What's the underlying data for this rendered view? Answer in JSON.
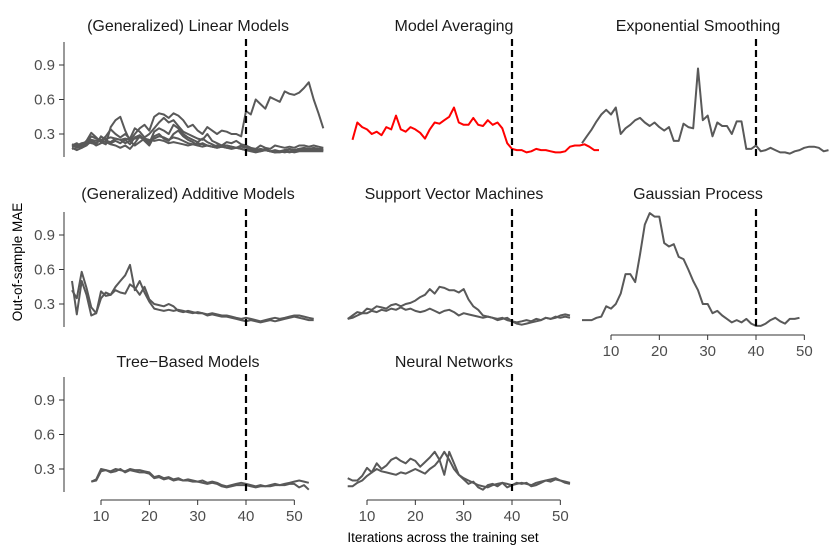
{
  "chart_data": {
    "type": "line",
    "facet_layout": "3x3 grid, 8 panels",
    "ylabel": "Out-of-sample MAE",
    "xlabel": "Iterations across the training set",
    "x_range": [
      4,
      52
    ],
    "y_range": [
      0.1,
      1.1
    ],
    "x_ticks": [
      "10",
      "20",
      "30",
      "40",
      "50"
    ],
    "y_ticks": [
      "0.3",
      "0.6",
      "0.9"
    ],
    "reference_line": {
      "x": 40,
      "style": "dashed",
      "color": "#000000"
    },
    "colors": {
      "default": "#595959",
      "highlight": "#ff0000"
    },
    "panels": [
      {
        "title": "(Generalized) Linear Models",
        "color": "#595959",
        "series": [
          {
            "x_start": 4,
            "values": [
              0.2,
              0.22,
              0.19,
              0.24,
              0.31,
              0.27,
              0.23,
              0.21,
              0.36,
              0.42,
              0.45,
              0.33,
              0.24,
              0.3,
              0.35,
              0.38,
              0.33,
              0.45,
              0.48,
              0.47,
              0.44,
              0.48,
              0.46,
              0.42,
              0.36,
              0.38,
              0.33,
              0.3,
              0.36,
              0.33,
              0.3,
              0.33,
              0.32,
              0.3,
              0.3,
              0.28,
              0.5,
              0.47,
              0.6,
              0.56,
              0.52,
              0.62,
              0.6,
              0.58,
              0.67,
              0.65,
              0.64,
              0.66,
              0.7,
              0.75,
              0.6,
              0.48,
              0.35
            ]
          },
          {
            "x_start": 4,
            "values": [
              0.19,
              0.2,
              0.21,
              0.22,
              0.28,
              0.26,
              0.24,
              0.28,
              0.34,
              0.3,
              0.27,
              0.3,
              0.26,
              0.35,
              0.32,
              0.27,
              0.3,
              0.35,
              0.4,
              0.44,
              0.4,
              0.42,
              0.37,
              0.32,
              0.3,
              0.28,
              0.26,
              0.25,
              0.3,
              0.24,
              0.22,
              0.2,
              0.23,
              0.22,
              0.24,
              0.21,
              0.2,
              0.18,
              0.17,
              0.2,
              0.18,
              0.17,
              0.2,
              0.19,
              0.18,
              0.19,
              0.18,
              0.2,
              0.2,
              0.19,
              0.2,
              0.19,
              0.18
            ]
          },
          {
            "x_start": 4,
            "values": [
              0.17,
              0.18,
              0.2,
              0.24,
              0.22,
              0.21,
              0.28,
              0.25,
              0.22,
              0.24,
              0.22,
              0.25,
              0.21,
              0.27,
              0.29,
              0.25,
              0.22,
              0.32,
              0.35,
              0.33,
              0.3,
              0.38,
              0.35,
              0.3,
              0.27,
              0.25,
              0.23,
              0.26,
              0.23,
              0.21,
              0.19,
              0.2,
              0.2,
              0.19,
              0.18,
              0.2,
              0.19,
              0.16,
              0.15,
              0.16,
              0.17,
              0.15,
              0.14,
              0.15,
              0.16,
              0.15,
              0.16,
              0.17,
              0.18,
              0.17,
              0.17,
              0.16,
              0.16
            ]
          },
          {
            "x_start": 4,
            "values": [
              0.18,
              0.16,
              0.18,
              0.2,
              0.24,
              0.22,
              0.25,
              0.23,
              0.21,
              0.2,
              0.18,
              0.2,
              0.17,
              0.22,
              0.28,
              0.24,
              0.2,
              0.28,
              0.3,
              0.26,
              0.24,
              0.3,
              0.33,
              0.28,
              0.25,
              0.23,
              0.2,
              0.22,
              0.2,
              0.19,
              0.18,
              0.19,
              0.18,
              0.19,
              0.18,
              0.17,
              0.16,
              0.15,
              0.14,
              0.15,
              0.16,
              0.15,
              0.14,
              0.14,
              0.15,
              0.14,
              0.15,
              0.16,
              0.17,
              0.16,
              0.16,
              0.16,
              0.16
            ]
          },
          {
            "x_start": 4,
            "values": [
              0.2,
              0.19,
              0.18,
              0.21,
              0.23,
              0.2,
              0.22,
              0.24,
              0.23,
              0.26,
              0.25,
              0.22,
              0.24,
              0.2,
              0.23,
              0.26,
              0.24,
              0.26,
              0.28,
              0.27,
              0.25,
              0.27,
              0.26,
              0.24,
              0.22,
              0.21,
              0.22,
              0.21,
              0.2,
              0.19,
              0.2,
              0.19,
              0.2,
              0.19,
              0.18,
              0.19,
              0.18,
              0.17,
              0.16,
              0.17,
              0.16,
              0.15,
              0.16,
              0.15,
              0.16,
              0.17,
              0.16,
              0.17,
              0.16,
              0.17,
              0.18,
              0.17,
              0.17
            ]
          },
          {
            "x_start": 4,
            "values": [
              0.21,
              0.2,
              0.22,
              0.23,
              0.25,
              0.24,
              0.25,
              0.26,
              0.27,
              0.26,
              0.25,
              0.26,
              0.25,
              0.26,
              0.27,
              0.26,
              0.25,
              0.24,
              0.25,
              0.24,
              0.22,
              0.23,
              0.22,
              0.21,
              0.2,
              0.21,
              0.2,
              0.19,
              0.2,
              0.19,
              0.18,
              0.19,
              0.18,
              0.17,
              0.18,
              0.17,
              0.16,
              0.17,
              0.16,
              0.15,
              0.16,
              0.15,
              0.14,
              0.15,
              0.14,
              0.15,
              0.14,
              0.15,
              0.15,
              0.15,
              0.15,
              0.15,
              0.15
            ]
          }
        ]
      },
      {
        "title": "Model Averaging",
        "color": "#ff0000",
        "series": [
          {
            "x_start": 7,
            "values": [
              0.25,
              0.4,
              0.36,
              0.34,
              0.3,
              0.32,
              0.29,
              0.36,
              0.34,
              0.46,
              0.34,
              0.32,
              0.36,
              0.34,
              0.31,
              0.26,
              0.34,
              0.4,
              0.39,
              0.42,
              0.45,
              0.53,
              0.4,
              0.38,
              0.38,
              0.44,
              0.38,
              0.37,
              0.42,
              0.38,
              0.4,
              0.35,
              0.22,
              0.17,
              0.16,
              0.16,
              0.14,
              0.15,
              0.17,
              0.16,
              0.16,
              0.15,
              0.14,
              0.14,
              0.15,
              0.19,
              0.2,
              0.2,
              0.21,
              0.19,
              0.16,
              0.16
            ]
          }
        ]
      },
      {
        "title": "Exponential Smoothing",
        "color": "#595959",
        "series": [
          {
            "x_start": 4,
            "values": [
              0.22,
              0.28,
              0.34,
              0.41,
              0.47,
              0.51,
              0.47,
              0.53,
              0.3,
              0.35,
              0.38,
              0.42,
              0.44,
              0.4,
              0.37,
              0.4,
              0.36,
              0.33,
              0.36,
              0.24,
              0.24,
              0.39,
              0.36,
              0.35,
              0.87,
              0.42,
              0.46,
              0.28,
              0.4,
              0.37,
              0.37,
              0.3,
              0.41,
              0.41,
              0.17,
              0.17,
              0.2,
              0.15,
              0.16,
              0.18,
              0.16,
              0.14,
              0.14,
              0.13,
              0.15,
              0.16,
              0.18,
              0.19,
              0.19,
              0.18,
              0.15,
              0.16
            ]
          }
        ]
      },
      {
        "title": "(Generalized) Additive Models",
        "color": "#595959",
        "series": [
          {
            "x_start": 4,
            "values": [
              0.5,
              0.21,
              0.5,
              0.38,
              0.2,
              0.22,
              0.41,
              0.37,
              0.38,
              0.42,
              0.4,
              0.39,
              0.47,
              0.44,
              0.38,
              0.45,
              0.34,
              0.3,
              0.29,
              0.28,
              0.3,
              0.28,
              0.24,
              0.23,
              0.24,
              0.23,
              0.22,
              0.22,
              0.21,
              0.22,
              0.21,
              0.2,
              0.2,
              0.19,
              0.18,
              0.17,
              0.18,
              0.17,
              0.16,
              0.15,
              0.16,
              0.17,
              0.18,
              0.17,
              0.18,
              0.19,
              0.2,
              0.2,
              0.19,
              0.18,
              0.17
            ]
          },
          {
            "x_start": 4,
            "values": [
              0.42,
              0.35,
              0.58,
              0.44,
              0.27,
              0.22,
              0.35,
              0.4,
              0.38,
              0.45,
              0.5,
              0.55,
              0.64,
              0.42,
              0.5,
              0.4,
              0.32,
              0.26,
              0.25,
              0.24,
              0.25,
              0.24,
              0.25,
              0.24,
              0.23,
              0.22,
              0.23,
              0.22,
              0.2,
              0.21,
              0.2,
              0.19,
              0.19,
              0.18,
              0.17,
              0.16,
              0.15,
              0.16,
              0.15,
              0.14,
              0.15,
              0.16,
              0.15,
              0.16,
              0.17,
              0.18,
              0.19,
              0.18,
              0.17,
              0.16,
              0.16
            ]
          }
        ]
      },
      {
        "title": "Support Vector Machines",
        "color": "#595959",
        "series": [
          {
            "x_start": 6,
            "values": [
              0.17,
              0.2,
              0.23,
              0.22,
              0.26,
              0.25,
              0.28,
              0.27,
              0.26,
              0.29,
              0.3,
              0.28,
              0.3,
              0.31,
              0.33,
              0.36,
              0.38,
              0.43,
              0.39,
              0.45,
              0.44,
              0.42,
              0.42,
              0.4,
              0.43,
              0.34,
              0.28,
              0.25,
              0.2,
              0.19,
              0.18,
              0.16,
              0.17,
              0.18,
              0.15,
              0.13,
              0.12,
              0.13,
              0.14,
              0.15,
              0.16,
              0.18,
              0.17,
              0.18,
              0.2,
              0.21,
              0.2
            ]
          },
          {
            "x_start": 6,
            "values": [
              0.17,
              0.18,
              0.2,
              0.22,
              0.22,
              0.24,
              0.23,
              0.25,
              0.24,
              0.26,
              0.25,
              0.27,
              0.25,
              0.26,
              0.24,
              0.23,
              0.24,
              0.26,
              0.24,
              0.22,
              0.24,
              0.25,
              0.23,
              0.2,
              0.22,
              0.21,
              0.2,
              0.19,
              0.18,
              0.19,
              0.18,
              0.17,
              0.18,
              0.16,
              0.15,
              0.14,
              0.15,
              0.16,
              0.15,
              0.17,
              0.16,
              0.18,
              0.17,
              0.19,
              0.18,
              0.19,
              0.18
            ]
          }
        ]
      },
      {
        "title": "Gaussian Process",
        "color": "#595959",
        "series": [
          {
            "x_start": 4,
            "values": [
              0.16,
              0.16,
              0.16,
              0.18,
              0.19,
              0.28,
              0.26,
              0.3,
              0.39,
              0.56,
              0.56,
              0.49,
              0.73,
              0.99,
              1.09,
              1.06,
              1.06,
              0.83,
              0.8,
              0.82,
              0.71,
              0.69,
              0.6,
              0.5,
              0.42,
              0.3,
              0.3,
              0.22,
              0.24,
              0.2,
              0.17,
              0.14,
              0.16,
              0.14,
              0.17,
              0.13,
              0.11,
              0.11,
              0.13,
              0.16,
              0.18,
              0.15,
              0.13,
              0.17,
              0.17,
              0.18
            ]
          }
        ]
      },
      {
        "title": "Tree−Based Models",
        "color": "#595959",
        "series": [
          {
            "x_start": 8,
            "values": [
              0.19,
              0.21,
              0.3,
              0.29,
              0.28,
              0.3,
              0.29,
              0.28,
              0.3,
              0.29,
              0.29,
              0.28,
              0.27,
              0.23,
              0.24,
              0.22,
              0.23,
              0.21,
              0.22,
              0.2,
              0.21,
              0.2,
              0.19,
              0.2,
              0.18,
              0.19,
              0.18,
              0.16,
              0.15,
              0.16,
              0.17,
              0.18,
              0.17,
              0.16,
              0.15,
              0.16,
              0.15,
              0.16,
              0.17,
              0.16,
              0.17,
              0.18,
              0.19,
              0.2,
              0.19,
              0.18
            ]
          },
          {
            "x_start": 8,
            "values": [
              0.19,
              0.2,
              0.28,
              0.29,
              0.27,
              0.28,
              0.3,
              0.27,
              0.29,
              0.28,
              0.27,
              0.27,
              0.26,
              0.22,
              0.23,
              0.21,
              0.22,
              0.2,
              0.21,
              0.2,
              0.2,
              0.19,
              0.19,
              0.18,
              0.17,
              0.18,
              0.17,
              0.15,
              0.14,
              0.15,
              0.16,
              0.16,
              0.16,
              0.15,
              0.14,
              0.15,
              0.15,
              0.15,
              0.16,
              0.16,
              0.16,
              0.17,
              0.17,
              0.14,
              0.16,
              0.12
            ]
          }
        ]
      },
      {
        "title": "Neural Networks",
        "color": "#595959",
        "series": [
          {
            "x_start": 6,
            "values": [
              0.22,
              0.2,
              0.2,
              0.24,
              0.31,
              0.27,
              0.35,
              0.3,
              0.33,
              0.38,
              0.4,
              0.37,
              0.35,
              0.39,
              0.37,
              0.32,
              0.36,
              0.4,
              0.45,
              0.38,
              0.25,
              0.45,
              0.35,
              0.25,
              0.21,
              0.17,
              0.19,
              0.14,
              0.12,
              0.16,
              0.17,
              0.15,
              0.18,
              0.14,
              0.16,
              0.18,
              0.17,
              0.18,
              0.15,
              0.16,
              0.18,
              0.2,
              0.19,
              0.21,
              0.2,
              0.18,
              0.17
            ]
          },
          {
            "x_start": 6,
            "values": [
              0.15,
              0.15,
              0.18,
              0.2,
              0.24,
              0.27,
              0.3,
              0.28,
              0.27,
              0.26,
              0.25,
              0.27,
              0.26,
              0.28,
              0.3,
              0.28,
              0.26,
              0.3,
              0.33,
              0.38,
              0.45,
              0.38,
              0.3,
              0.25,
              0.22,
              0.2,
              0.18,
              0.16,
              0.15,
              0.14,
              0.16,
              0.17,
              0.18,
              0.17,
              0.16,
              0.17,
              0.18,
              0.17,
              0.16,
              0.18,
              0.19,
              0.2,
              0.21,
              0.22,
              0.2,
              0.19,
              0.18
            ]
          }
        ]
      }
    ]
  }
}
